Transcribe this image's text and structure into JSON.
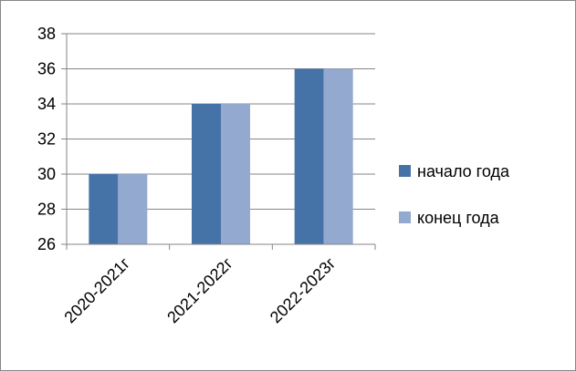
{
  "chart_data": {
    "type": "bar",
    "categories": [
      "2020-2021г",
      "2021-2022г",
      "2022-2023г"
    ],
    "series": [
      {
        "name": "начало года",
        "values": [
          30,
          34,
          36
        ],
        "color": "#4572A7"
      },
      {
        "name": "конец года",
        "values": [
          30,
          34,
          36
        ],
        "color": "#93A9CF"
      }
    ],
    "title": "",
    "xlabel": "",
    "ylabel": "",
    "ylim": [
      26,
      38
    ],
    "yticks": [
      26,
      28,
      30,
      32,
      34,
      36,
      38
    ],
    "grid": true,
    "legend_position": "right"
  }
}
